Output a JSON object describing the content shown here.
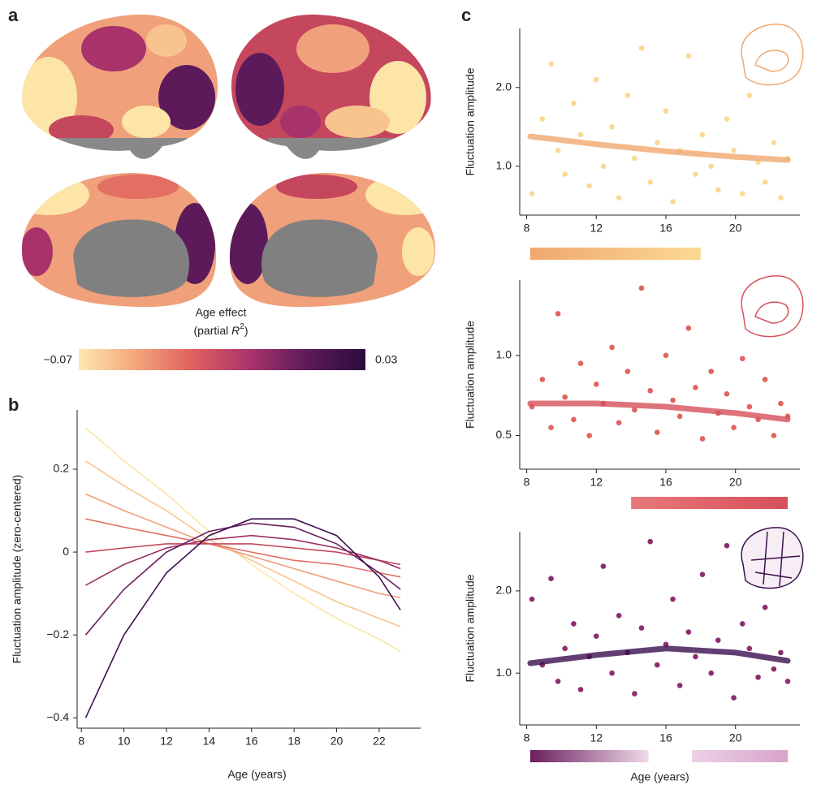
{
  "panel_labels": [
    "a",
    "b",
    "c"
  ],
  "chart_data": [
    {
      "type": "colorbar",
      "title": "Age effect",
      "subtitle": [
        "(partial ",
        "R",
        "2",
        ")"
      ],
      "colors": [
        "#fde9b0",
        "#f3a57a",
        "#e05f5f",
        "#a8336b",
        "#5c1a5a",
        "#2a0c3d"
      ],
      "ticks": [
        {
          "value": -0.07,
          "label": "−0.07"
        },
        0.03
      ]
    },
    {
      "type": "line",
      "xlabel": "Age (years)",
      "ylabel": "Fluctuation amplitude (zero-centered)",
      "xlim": [
        7.8,
        23.95
      ],
      "xticks": [
        8,
        10,
        12,
        14,
        16,
        18,
        20,
        22
      ],
      "ylim": [
        -0.425,
        0.343
      ],
      "yticks": [
        {
          "value": -0.4,
          "label": "−0.4"
        },
        {
          "value": -0.2,
          "label": "−0.2"
        },
        0,
        0.2
      ],
      "x": [
        8.2,
        10,
        12,
        14,
        16,
        18,
        20,
        22,
        23
      ],
      "series": [
        {
          "color": "#fce5a6",
          "values": [
            0.3,
            0.22,
            0.14,
            0.05,
            -0.03,
            -0.1,
            -0.16,
            -0.21,
            -0.24
          ]
        },
        {
          "color": "#f7c48f",
          "values": [
            0.22,
            0.16,
            0.1,
            0.03,
            -0.02,
            -0.07,
            -0.12,
            -0.16,
            -0.18
          ]
        },
        {
          "color": "#f0a07a",
          "values": [
            0.14,
            0.1,
            0.06,
            0.02,
            -0.01,
            -0.04,
            -0.07,
            -0.1,
            -0.11
          ]
        },
        {
          "color": "#e36f63",
          "values": [
            0.08,
            0.06,
            0.04,
            0.02,
            0.0,
            -0.02,
            -0.03,
            -0.05,
            -0.06
          ]
        },
        {
          "color": "#c4475e",
          "values": [
            0.0,
            0.01,
            0.02,
            0.02,
            0.02,
            0.01,
            0.0,
            -0.02,
            -0.03
          ]
        },
        {
          "color": "#9b2f63",
          "values": [
            -0.08,
            -0.03,
            0.01,
            0.03,
            0.04,
            0.03,
            0.01,
            -0.02,
            -0.04
          ]
        },
        {
          "color": "#6a1f5e",
          "values": [
            -0.2,
            -0.09,
            0.0,
            0.05,
            0.07,
            0.06,
            0.02,
            -0.05,
            -0.09
          ]
        },
        {
          "color": "#3b0f4f",
          "values": [
            -0.4,
            -0.2,
            -0.05,
            0.04,
            0.08,
            0.08,
            0.04,
            -0.06,
            -0.14
          ]
        }
      ]
    },
    {
      "type": "scatter",
      "ylabel": "Fluctuation amplitude",
      "color": "#fbd994",
      "fit_color": "#f0a86e",
      "xlim": [
        7.6,
        23.7
      ],
      "xticks": [
        8,
        12,
        16,
        20
      ],
      "ylim": [
        0.38,
        2.75
      ],
      "yticks": [
        {
          "value": 1,
          "label": "1.0"
        },
        {
          "value": 2,
          "label": "2.0"
        }
      ],
      "x": [
        8.3,
        8.9,
        9.4,
        9.8,
        10.2,
        10.7,
        11.1,
        11.6,
        12.0,
        12.4,
        12.9,
        13.3,
        13.8,
        14.2,
        14.6,
        15.1,
        15.5,
        16.0,
        16.4,
        16.8,
        17.3,
        17.7,
        18.1,
        18.6,
        19.0,
        19.5,
        19.9,
        20.4,
        20.8,
        21.3,
        21.7,
        22.2,
        22.6,
        23.0
      ],
      "y": [
        0.65,
        1.6,
        2.3,
        1.2,
        0.9,
        1.8,
        1.4,
        0.75,
        2.1,
        1.0,
        1.5,
        0.6,
        1.9,
        1.1,
        2.5,
        0.8,
        1.3,
        1.7,
        0.55,
        1.2,
        2.4,
        0.9,
        1.4,
        1.0,
        0.7,
        1.6,
        1.2,
        0.65,
        1.9,
        1.05,
        0.8,
        1.3,
        0.6,
        1.1
      ],
      "fit": {
        "x": [
          8.2,
          12,
          16,
          20,
          23
        ],
        "y": [
          1.38,
          1.28,
          1.19,
          1.12,
          1.08
        ]
      },
      "age_bars": [
        {
          "from": 8.2,
          "to": 18,
          "colors": [
            "#f0a86e",
            "#fbd994"
          ]
        }
      ]
    },
    {
      "type": "scatter",
      "ylabel": "Fluctuation amplitude",
      "color": "#e0645f",
      "fit_color": "#d6505a",
      "xlim": [
        7.6,
        23.7
      ],
      "xticks": [
        8,
        12,
        16,
        20
      ],
      "ylim": [
        0.29,
        1.47
      ],
      "yticks": [
        0.5,
        {
          "value": 1,
          "label": "1.0"
        }
      ],
      "x": [
        8.3,
        8.9,
        9.4,
        9.8,
        10.2,
        10.7,
        11.1,
        11.6,
        12.0,
        12.4,
        12.9,
        13.3,
        13.8,
        14.2,
        14.6,
        15.1,
        15.5,
        16.0,
        16.4,
        16.8,
        17.3,
        17.7,
        18.1,
        18.6,
        19.0,
        19.5,
        19.9,
        20.4,
        20.8,
        21.3,
        21.7,
        22.2,
        22.6,
        23.0
      ],
      "y": [
        0.68,
        0.85,
        0.55,
        1.26,
        0.74,
        0.6,
        0.95,
        0.5,
        0.82,
        0.7,
        1.05,
        0.58,
        0.9,
        0.66,
        1.42,
        0.78,
        0.52,
        1.0,
        0.72,
        0.62,
        1.17,
        0.8,
        0.48,
        0.9,
        0.64,
        0.76,
        0.55,
        0.98,
        0.68,
        0.6,
        0.85,
        0.5,
        0.7,
        0.62
      ],
      "fit": {
        "x": [
          8.2,
          12,
          16,
          20,
          23
        ],
        "y": [
          0.7,
          0.7,
          0.68,
          0.64,
          0.6
        ]
      },
      "age_bars": [
        {
          "from": 14,
          "to": 23,
          "colors": [
            "#e8787a",
            "#d6505a"
          ]
        }
      ]
    },
    {
      "type": "scatter",
      "ylabel": "Fluctuation amplitude",
      "xlabel": "Age (years)",
      "color": "#8e2d6e",
      "fit_color": "#3b0f4f",
      "xlim": [
        7.6,
        23.7
      ],
      "xticks": [
        8,
        12,
        16,
        20
      ],
      "ylim": [
        0.37,
        2.72
      ],
      "yticks": [
        {
          "value": 1,
          "label": "1.0"
        },
        {
          "value": 2,
          "label": "2.0"
        }
      ],
      "x": [
        8.3,
        8.9,
        9.4,
        9.8,
        10.2,
        10.7,
        11.1,
        11.6,
        12.0,
        12.4,
        12.9,
        13.3,
        13.8,
        14.2,
        14.6,
        15.1,
        15.5,
        16.0,
        16.4,
        16.8,
        17.3,
        17.7,
        18.1,
        18.6,
        19.0,
        19.5,
        19.9,
        20.4,
        20.8,
        21.3,
        21.7,
        22.2,
        22.6,
        23.0
      ],
      "y": [
        1.9,
        1.1,
        2.15,
        0.9,
        1.3,
        1.6,
        0.8,
        1.2,
        1.45,
        2.3,
        1.0,
        1.7,
        1.25,
        0.75,
        1.55,
        2.6,
        1.1,
        1.35,
        1.9,
        0.85,
        1.5,
        1.2,
        2.2,
        1.0,
        1.4,
        2.55,
        0.7,
        1.6,
        1.3,
        0.95,
        1.8,
        1.05,
        1.25,
        0.9
      ],
      "fit": {
        "x": [
          8.2,
          12,
          16,
          20,
          23
        ],
        "y": [
          1.12,
          1.22,
          1.3,
          1.25,
          1.15
        ]
      },
      "age_bars": [
        {
          "from": 8.2,
          "to": 15,
          "colors": [
            "#6a1f5e",
            "#f0dbe8"
          ]
        },
        {
          "from": 17.5,
          "to": 23,
          "colors": [
            "#ecd1e4",
            "#d8a3cc"
          ]
        }
      ]
    }
  ]
}
